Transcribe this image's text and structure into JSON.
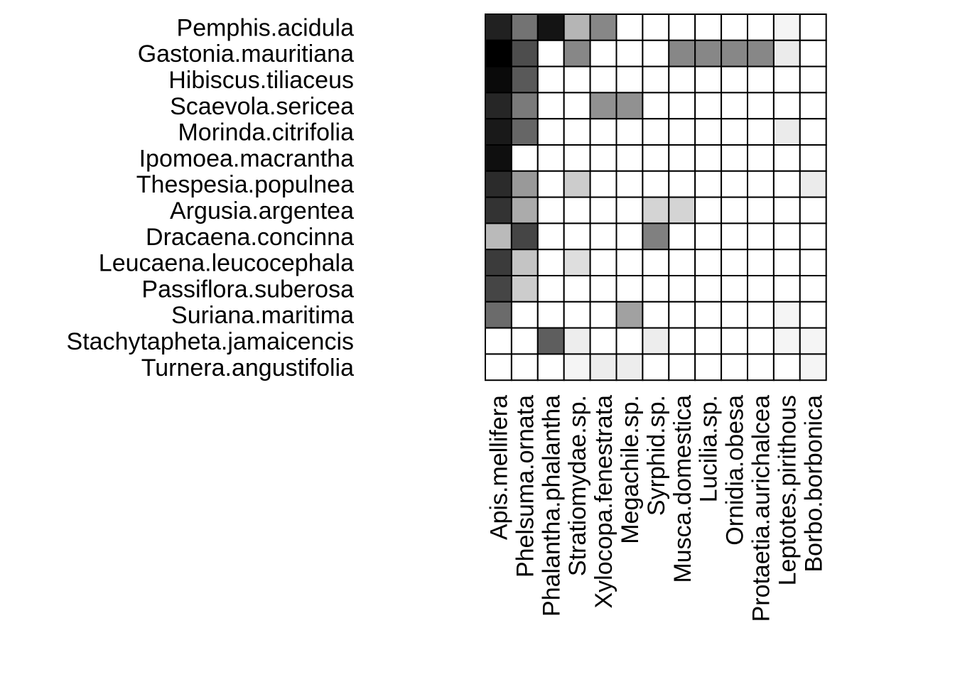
{
  "chart_data": {
    "type": "heatmap",
    "title": "",
    "xlabel": "",
    "ylabel": "",
    "grid": true,
    "legend": "none",
    "color_low": "#ffffff",
    "color_high": "#000000",
    "value_range": [
      0,
      1
    ],
    "rows": [
      "Pemphis.acidula",
      "Gastonia.mauritiana",
      "Hibiscus.tiliaceus",
      "Scaevola.sericea",
      "Morinda.citrifolia",
      "Ipomoea.macrantha",
      "Thespesia.populnea",
      "Argusia.argentea",
      "Dracaena.concinna",
      "Leucaena.leucocephala",
      "Passiflora.suberosa",
      "Suriana.maritima",
      "Stachytapheta.jamaicencis",
      "Turnera.angustifolia"
    ],
    "columns": [
      "Apis.mellifera",
      "Phelsuma.ornata",
      "Phalantha.phalantha",
      "Stratiomydae.sp.",
      "Xylocopa.fenestrata",
      "Megachile.sp.",
      "Syrphid.sp.",
      "Musca.domestica",
      "Lucilia.sp.",
      "Ornidia.obesa",
      "Protaetia.aurichalcea",
      "Leptotes.pirithous",
      "Borbo.borbonica"
    ],
    "values": [
      [
        0.87,
        0.55,
        0.92,
        0.29,
        0.47,
        0,
        0,
        0,
        0,
        0,
        0,
        0.04,
        0
      ],
      [
        1.0,
        0.7,
        0,
        0.47,
        0,
        0,
        0,
        0.47,
        0.47,
        0.47,
        0.47,
        0.08,
        0
      ],
      [
        0.96,
        0.65,
        0,
        0,
        0,
        0,
        0,
        0,
        0,
        0,
        0,
        0,
        0
      ],
      [
        0.85,
        0.52,
        0,
        0,
        0.43,
        0.43,
        0,
        0,
        0,
        0,
        0,
        0,
        0
      ],
      [
        0.9,
        0.6,
        0,
        0,
        0,
        0,
        0,
        0,
        0,
        0,
        0,
        0.08,
        0
      ],
      [
        0.94,
        0,
        0,
        0,
        0,
        0,
        0,
        0,
        0,
        0,
        0,
        0,
        0
      ],
      [
        0.83,
        0.4,
        0,
        0.2,
        0,
        0,
        0,
        0,
        0,
        0,
        0,
        0,
        0.08
      ],
      [
        0.8,
        0.33,
        0,
        0,
        0,
        0,
        0.17,
        0.17,
        0,
        0,
        0,
        0,
        0
      ],
      [
        0.27,
        0.73,
        0,
        0,
        0,
        0,
        0.5,
        0,
        0,
        0,
        0,
        0,
        0
      ],
      [
        0.77,
        0.23,
        0,
        0.13,
        0,
        0,
        0,
        0,
        0,
        0,
        0,
        0,
        0
      ],
      [
        0.73,
        0.2,
        0,
        0,
        0,
        0,
        0,
        0,
        0,
        0,
        0,
        0,
        0
      ],
      [
        0.58,
        0,
        0,
        0,
        0,
        0.37,
        0,
        0,
        0,
        0,
        0,
        0.04,
        0
      ],
      [
        0,
        0,
        0.63,
        0.07,
        0,
        0,
        0.07,
        0,
        0,
        0,
        0,
        0.04,
        0.04
      ],
      [
        0,
        0,
        0,
        0.04,
        0.07,
        0.07,
        0,
        0,
        0,
        0,
        0,
        0,
        0.04
      ]
    ]
  }
}
